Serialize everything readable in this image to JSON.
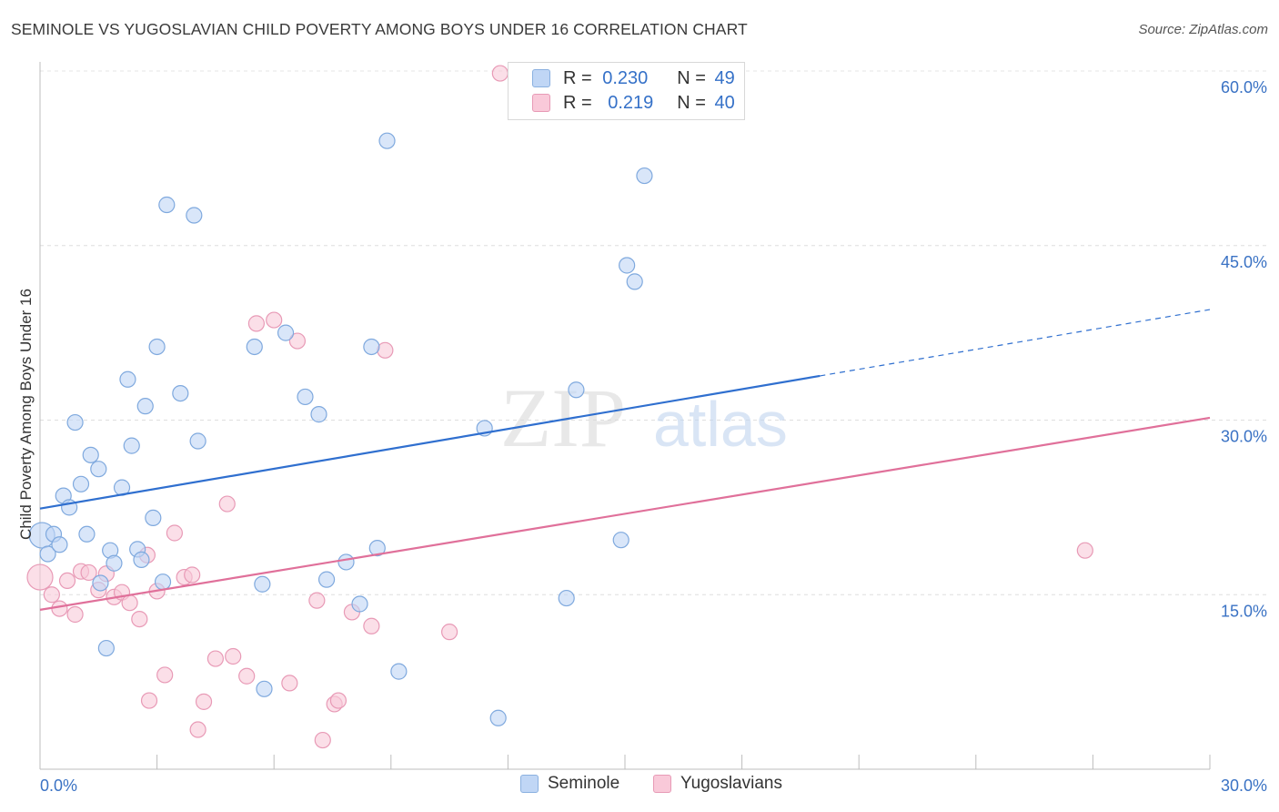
{
  "title": "SEMINOLE VS YUGOSLAVIAN CHILD POVERTY AMONG BOYS UNDER 16 CORRELATION CHART",
  "source": "Source: ZipAtlas.com",
  "watermark": {
    "zip": "ZIP",
    "atlas": "atlas"
  },
  "legend_top": [
    {
      "r_label": "R =",
      "r_value": "0.230",
      "n_label": "N =",
      "n_value": "49"
    },
    {
      "r_label": "R =",
      "r_value": "0.219",
      "n_label": "N =",
      "n_value": "40"
    }
  ],
  "legend_bottom": [
    "Seminole",
    "Yugoslavians"
  ],
  "colors": {
    "seminole_fill": "#c0d6f5",
    "seminole_stroke": "#7fa9de",
    "seminole_line": "#2f6fcf",
    "yugo_fill": "#f9c9d9",
    "yugo_stroke": "#e89ab6",
    "yugo_line": "#e0709a",
    "axis_text": "#3a72c4"
  },
  "chart_data": {
    "type": "scatter",
    "title": "SEMINOLE VS YUGOSLAVIAN CHILD POVERTY AMONG BOYS UNDER 16 CORRELATION CHART",
    "xlabel": "",
    "ylabel": "Child Poverty Among Boys Under 16",
    "xlim": [
      0,
      30
    ],
    "ylim": [
      0,
      60
    ],
    "x_tick_labels": [
      "0.0%",
      "30.0%"
    ],
    "y_tick_labels": [
      "15.0%",
      "30.0%",
      "45.0%",
      "60.0%"
    ],
    "y_ticks": [
      15,
      30,
      45,
      60
    ],
    "series": [
      {
        "name": "Seminole",
        "R": 0.23,
        "N": 49,
        "trend": {
          "x": [
            0,
            20
          ],
          "y": [
            22.4,
            33.8
          ],
          "dashed_to": [
            30,
            39.5
          ]
        },
        "points": [
          [
            0.05,
            20.1
          ],
          [
            0.2,
            18.5
          ],
          [
            0.35,
            20.2
          ],
          [
            0.5,
            19.3
          ],
          [
            0.6,
            23.5
          ],
          [
            0.75,
            22.5
          ],
          [
            0.9,
            29.8
          ],
          [
            1.05,
            24.5
          ],
          [
            1.2,
            20.2
          ],
          [
            1.3,
            27.0
          ],
          [
            1.5,
            25.8
          ],
          [
            1.55,
            16.0
          ],
          [
            1.7,
            10.4
          ],
          [
            1.8,
            18.8
          ],
          [
            1.9,
            17.7
          ],
          [
            2.1,
            24.2
          ],
          [
            2.25,
            33.5
          ],
          [
            2.35,
            27.8
          ],
          [
            2.5,
            18.9
          ],
          [
            2.6,
            18.0
          ],
          [
            2.7,
            31.2
          ],
          [
            2.9,
            21.6
          ],
          [
            3.0,
            36.3
          ],
          [
            3.15,
            16.1
          ],
          [
            3.25,
            48.5
          ],
          [
            3.6,
            32.3
          ],
          [
            3.95,
            47.6
          ],
          [
            4.05,
            28.2
          ],
          [
            5.75,
            6.9
          ],
          [
            5.5,
            36.3
          ],
          [
            5.7,
            15.9
          ],
          [
            6.3,
            37.5
          ],
          [
            6.8,
            32.0
          ],
          [
            7.15,
            30.5
          ],
          [
            7.35,
            16.3
          ],
          [
            7.85,
            17.8
          ],
          [
            8.2,
            14.2
          ],
          [
            8.5,
            36.3
          ],
          [
            8.65,
            19.0
          ],
          [
            8.9,
            54.0
          ],
          [
            9.2,
            8.4
          ],
          [
            11.4,
            29.3
          ],
          [
            11.75,
            4.4
          ],
          [
            13.5,
            14.7
          ],
          [
            13.75,
            32.6
          ],
          [
            14.9,
            19.7
          ],
          [
            15.05,
            43.3
          ],
          [
            15.25,
            41.9
          ],
          [
            15.5,
            51.0
          ]
        ]
      },
      {
        "name": "Yugoslavians",
        "R": 0.219,
        "N": 40,
        "trend": {
          "x": [
            0,
            30
          ],
          "y": [
            13.7,
            30.2
          ]
        },
        "points": [
          [
            0.0,
            16.5
          ],
          [
            0.3,
            15.0
          ],
          [
            0.5,
            13.8
          ],
          [
            0.7,
            16.2
          ],
          [
            0.9,
            13.3
          ],
          [
            1.05,
            17.0
          ],
          [
            1.25,
            16.9
          ],
          [
            1.5,
            15.4
          ],
          [
            1.7,
            16.8
          ],
          [
            1.9,
            14.8
          ],
          [
            2.1,
            15.2
          ],
          [
            2.3,
            14.3
          ],
          [
            2.55,
            12.9
          ],
          [
            2.75,
            18.4
          ],
          [
            2.8,
            5.9
          ],
          [
            3.0,
            15.3
          ],
          [
            3.2,
            8.1
          ],
          [
            3.45,
            20.3
          ],
          [
            3.7,
            16.5
          ],
          [
            3.9,
            16.7
          ],
          [
            4.05,
            3.4
          ],
          [
            4.2,
            5.8
          ],
          [
            4.5,
            9.5
          ],
          [
            4.8,
            22.8
          ],
          [
            4.95,
            9.7
          ],
          [
            5.3,
            8.0
          ],
          [
            5.55,
            38.3
          ],
          [
            6.0,
            38.6
          ],
          [
            6.4,
            7.4
          ],
          [
            6.6,
            36.8
          ],
          [
            7.1,
            14.5
          ],
          [
            7.25,
            2.5
          ],
          [
            7.55,
            5.6
          ],
          [
            7.65,
            5.9
          ],
          [
            8.0,
            13.5
          ],
          [
            8.5,
            12.3
          ],
          [
            8.85,
            36.0
          ],
          [
            10.5,
            11.8
          ],
          [
            11.8,
            59.8
          ],
          [
            26.8,
            18.8
          ]
        ]
      }
    ]
  }
}
